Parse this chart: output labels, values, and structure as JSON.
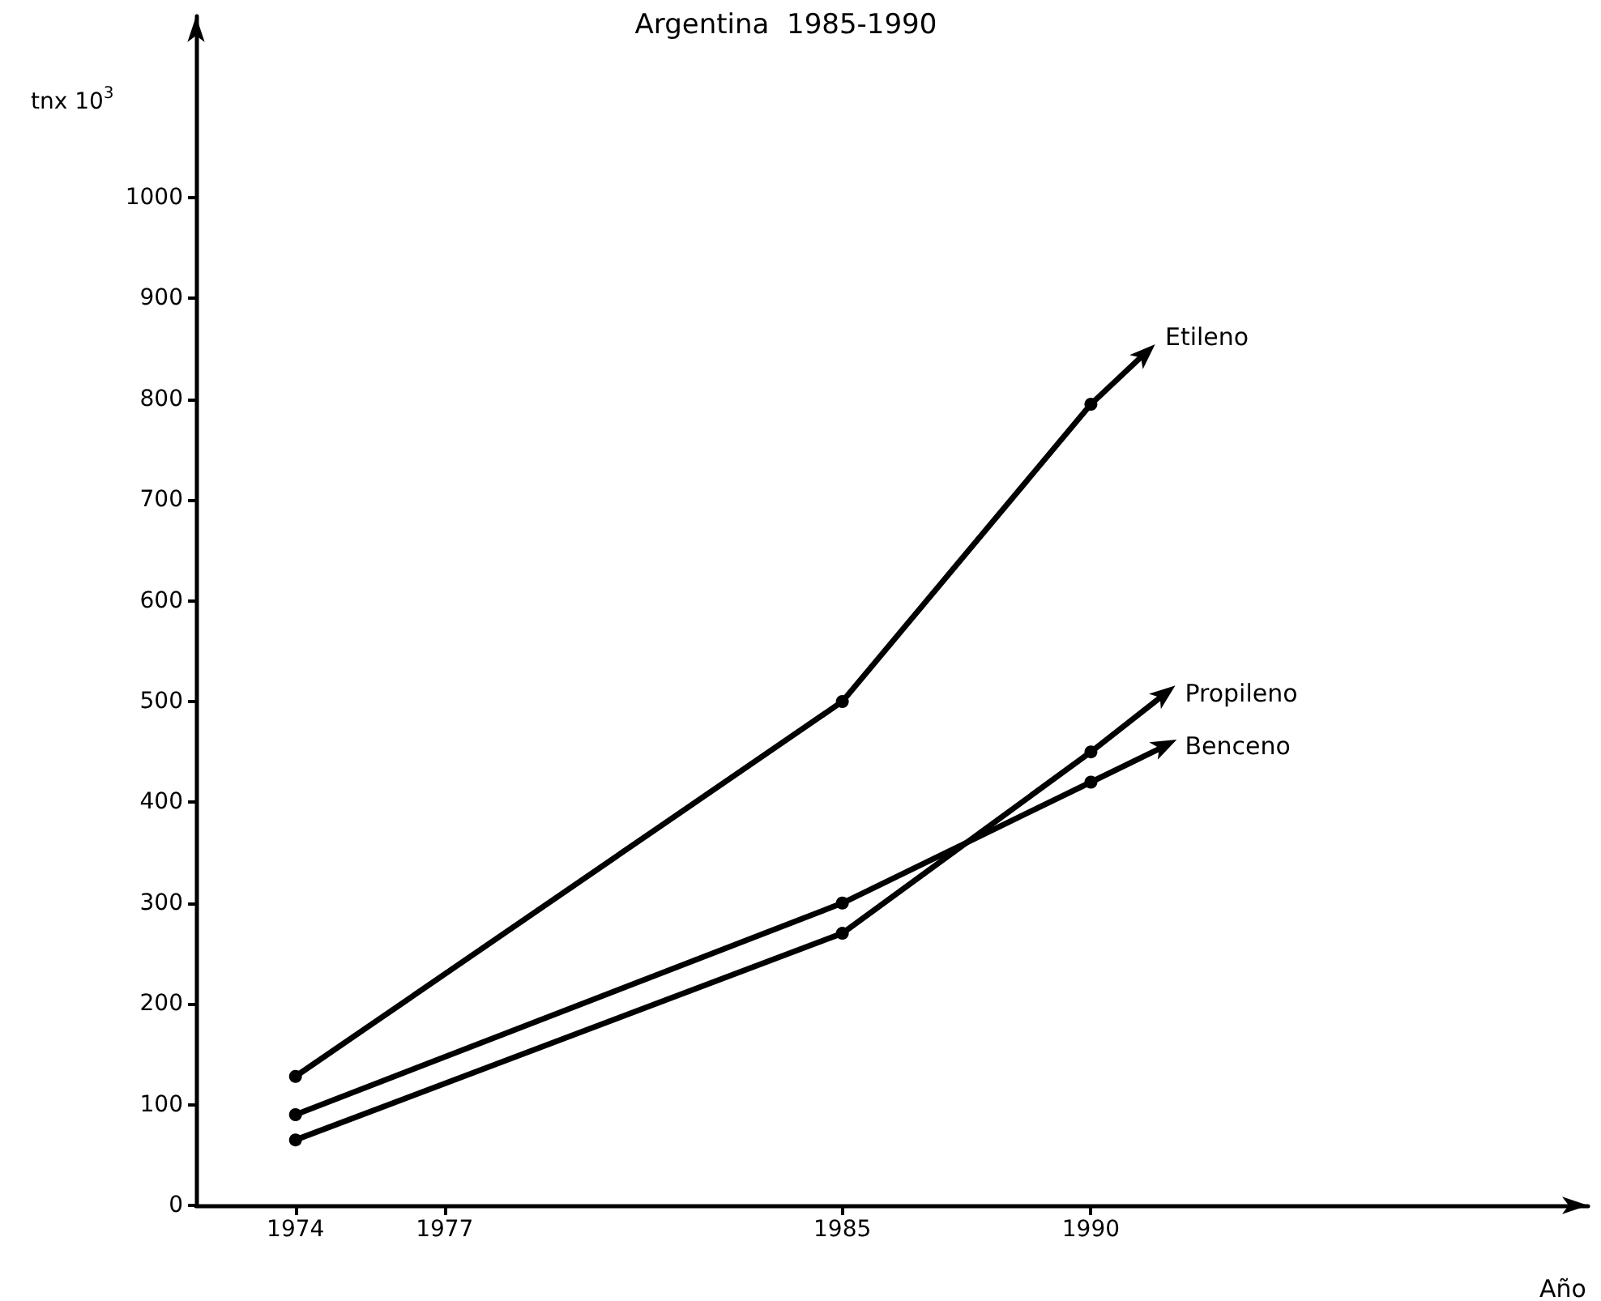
{
  "chart_data": {
    "type": "line",
    "title": "Argentina  1985-1990",
    "xlabel": "Año",
    "ylabel": "tnx 10$^{3}$",
    "xlim": [
      1972,
      2000
    ],
    "xticks": [
      1974,
      1977,
      1985,
      1990
    ],
    "ylim": [
      0,
      1180
    ],
    "yticks": [
      0,
      100,
      200,
      300,
      400,
      500,
      600,
      700,
      800,
      900,
      1000
    ],
    "grid": false,
    "legend": false,
    "marker": "circle",
    "line_style": "solid",
    "series": [
      {
        "name": "Etileno",
        "color": "#000000",
        "x": [
          1974,
          1985,
          1990,
          1991.1
        ],
        "values": [
          128,
          500,
          795,
          846
        ]
      },
      {
        "name": "Propileno",
        "color": "#000000",
        "x": [
          1974,
          1985,
          1990,
          1991.5
        ],
        "values": [
          65,
          270,
          450,
          508
        ]
      },
      {
        "name": "Benceno",
        "color": "#000000",
        "x": [
          1974,
          1985,
          1990,
          1991.5
        ],
        "values": [
          90,
          300,
          420,
          456
        ]
      }
    ]
  }
}
